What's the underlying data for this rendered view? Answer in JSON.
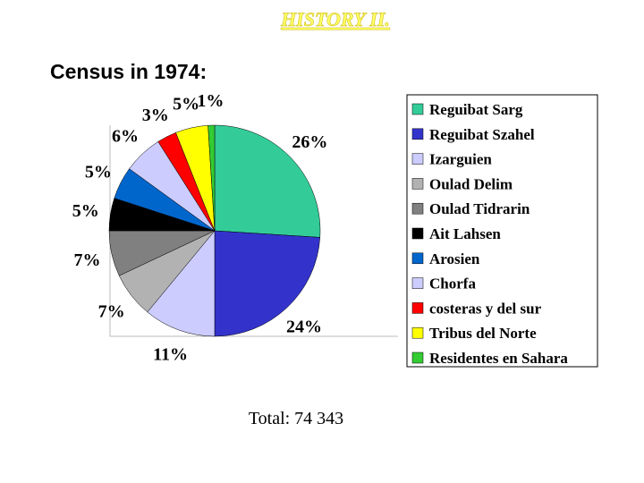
{
  "header": {
    "title": "HISTORY II."
  },
  "chart_data": {
    "type": "pie",
    "title": "Census in 1974:",
    "categories": [
      "Reguibat Sarg",
      "Reguibat Szahel",
      "Izarguien",
      "Oulad Delim",
      "Oulad Tidrarin",
      "Ait Lahsen",
      "Arosien",
      "Chorfa",
      "costeras y del sur",
      "Tribus del Norte",
      "Residentes en Sahara"
    ],
    "values": [
      26,
      24,
      11,
      7,
      7,
      5,
      5,
      6,
      3,
      5,
      1
    ],
    "value_labels": [
      "26%",
      "24%",
      "11%",
      "7%",
      "7%",
      "5%",
      "5%",
      "6%",
      "3%",
      "5%",
      "1%"
    ],
    "colors": [
      "#33cc99",
      "#3333cc",
      "#ccccff",
      "#b2b2b2",
      "#808080",
      "#000000",
      "#0066cc",
      "#ccccff",
      "#ff0000",
      "#ffff00",
      "#33cc33"
    ],
    "legend": "right",
    "annotations": [
      "Total: 74 343"
    ]
  }
}
